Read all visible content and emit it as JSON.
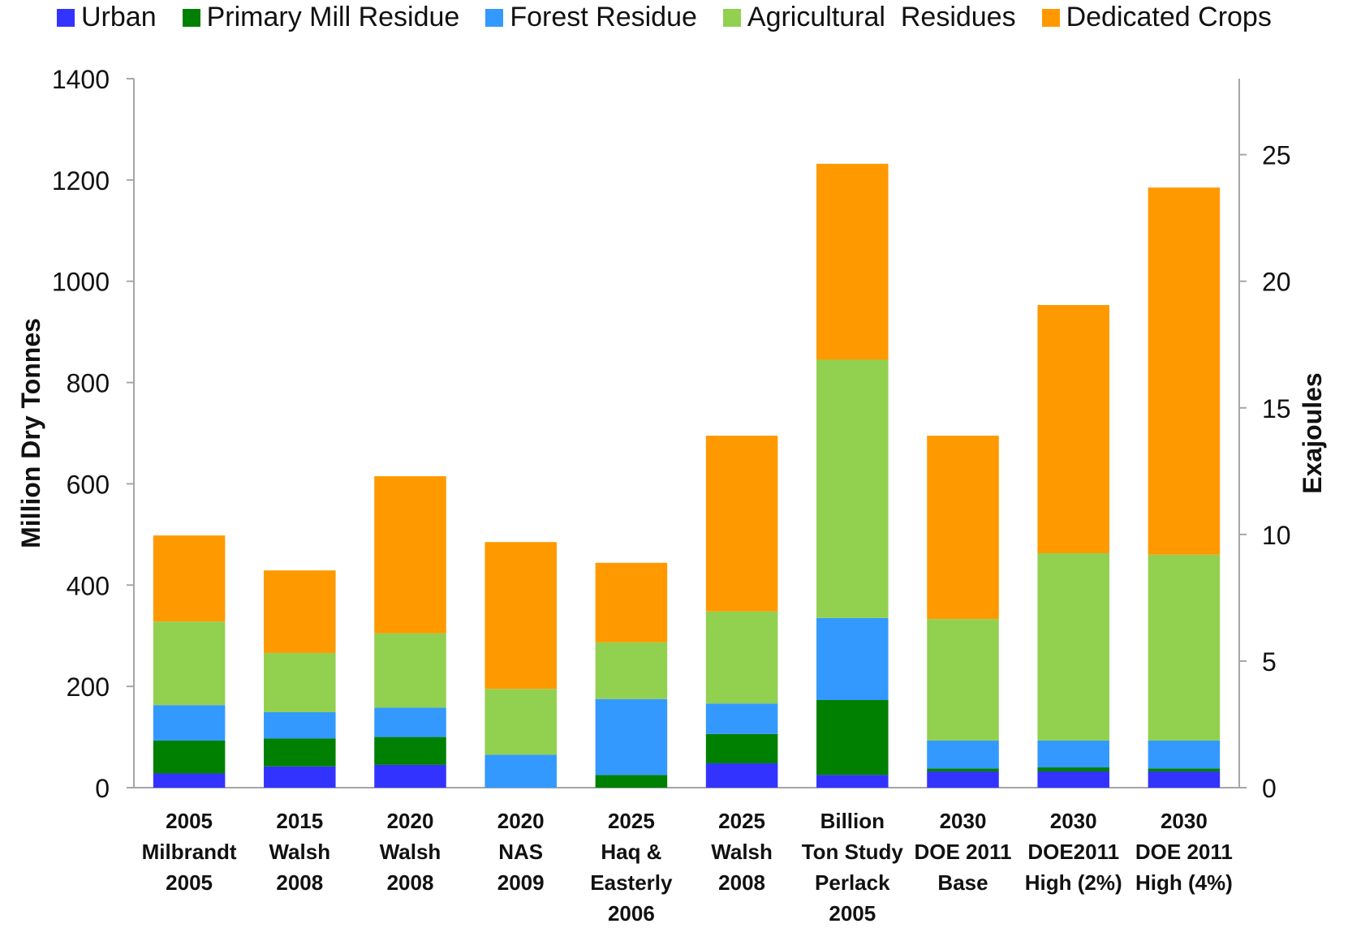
{
  "chart_data": {
    "type": "bar",
    "stacked": true,
    "categories": [
      [
        "2005",
        "Milbrandt",
        "2005"
      ],
      [
        "2015",
        "Walsh",
        "2008"
      ],
      [
        "2020",
        "Walsh",
        "2008"
      ],
      [
        "2020",
        "NAS",
        "2009"
      ],
      [
        "2025",
        "Haq &",
        "Easterly",
        "2006"
      ],
      [
        "2025",
        "Walsh",
        "2008"
      ],
      [
        "Billion",
        "Ton Study",
        "Perlack",
        "2005"
      ],
      [
        "2030",
        "DOE 2011",
        "Base"
      ],
      [
        "2030",
        "DOE2011",
        "High (2%)"
      ],
      [
        "2030",
        "DOE 2011",
        "High (4%)"
      ]
    ],
    "series": [
      {
        "name": "Urban",
        "color": "#3333ff",
        "values": [
          28,
          42,
          45,
          0,
          0,
          48,
          25,
          32,
          32,
          32
        ]
      },
      {
        "name": "Primary Mill Residue",
        "color": "#008000",
        "values": [
          65,
          55,
          55,
          0,
          25,
          58,
          148,
          6,
          8,
          6
        ]
      },
      {
        "name": "Forest Residue",
        "color": "#3399ff",
        "values": [
          70,
          52,
          58,
          65,
          150,
          60,
          162,
          55,
          53,
          55
        ]
      },
      {
        "name": "Agricultural  Residues",
        "color": "#92d050",
        "values": [
          165,
          117,
          147,
          130,
          112,
          182,
          510,
          240,
          370,
          367
        ]
      },
      {
        "name": "Dedicated Crops",
        "color": "#ff9900",
        "values": [
          170,
          163,
          310,
          290,
          157,
          347,
          387,
          362,
          490,
          725
        ]
      }
    ],
    "ylabel": "Million Dry Tonnes",
    "ylim": [
      0,
      1400
    ],
    "yticks": [
      0,
      200,
      400,
      600,
      800,
      1000,
      1200,
      1400
    ],
    "y2label": "Exajoules",
    "y2lim": [
      0,
      28
    ],
    "y2ticks": [
      0,
      5,
      10,
      15,
      20,
      25
    ],
    "grid": false,
    "legend_position": "top"
  }
}
